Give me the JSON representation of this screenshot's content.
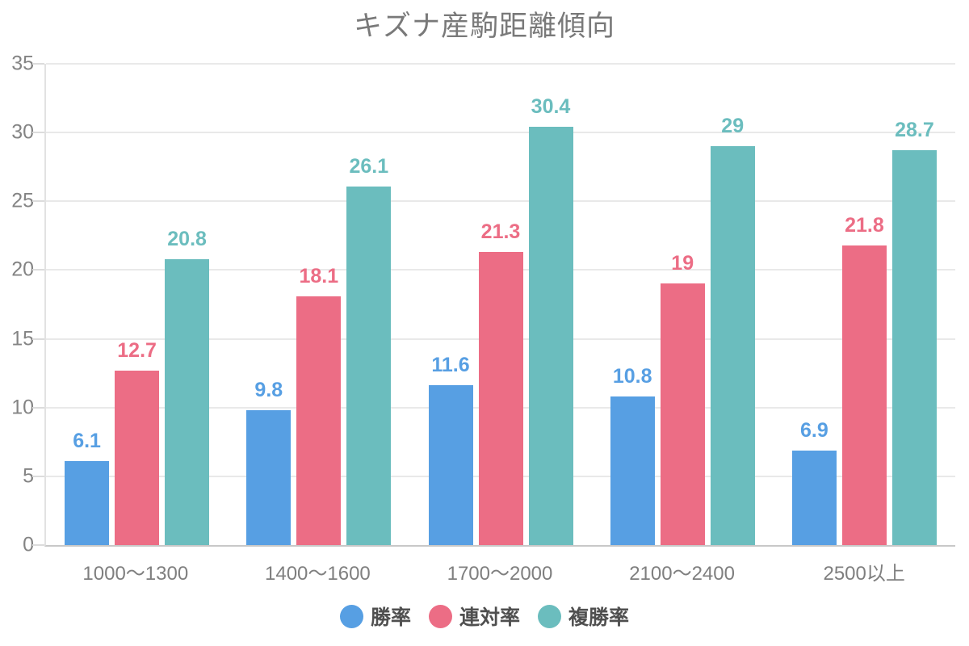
{
  "title": "キズナ産駒距離傾向",
  "chart_data": {
    "type": "bar",
    "title": "キズナ産駒距離傾向",
    "categories": [
      "1000〜1300",
      "1400〜1600",
      "1700〜2000",
      "2100〜2400",
      "2500以上"
    ],
    "series": [
      {
        "name": "勝率",
        "color": "#579fe3",
        "values": [
          6.1,
          9.8,
          11.6,
          10.8,
          6.9
        ]
      },
      {
        "name": "連対率",
        "color": "#ec6d85",
        "values": [
          12.7,
          18.1,
          21.3,
          19,
          21.8
        ]
      },
      {
        "name": "複勝率",
        "color": "#6bbdbe",
        "values": [
          20.8,
          26.1,
          30.4,
          29,
          28.7
        ]
      }
    ],
    "xlabel": "",
    "ylabel": "",
    "ylim": [
      0,
      35
    ],
    "yticks": [
      0,
      5,
      10,
      15,
      20,
      25,
      30,
      35
    ],
    "grid": true,
    "value_labels": true,
    "legend_position": "bottom"
  },
  "colors": {
    "title_text": "#797979",
    "axis_tick_text": "#848484",
    "x_label_text": "#7f7f7f",
    "legend_text": "#4f4f4f",
    "gridline": "#e9e9e9",
    "axis_line": "#e2e2e2",
    "baseline": "#c8c8c8"
  }
}
